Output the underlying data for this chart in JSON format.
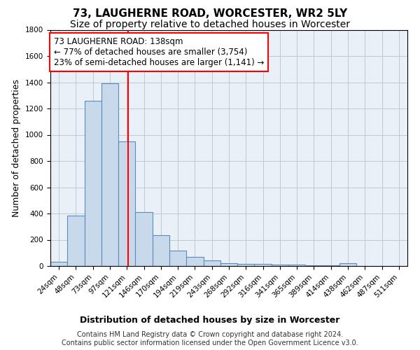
{
  "title": "73, LAUGHERNE ROAD, WORCESTER, WR2 5LY",
  "subtitle": "Size of property relative to detached houses in Worcester",
  "xlabel": "Distribution of detached houses by size in Worcester",
  "ylabel": "Number of detached properties",
  "bar_color": "#c9d9ec",
  "bar_edgecolor": "#5b8db8",
  "background_color": "#ffffff",
  "grid_color": "#c0c8d8",
  "ax_facecolor": "#eaf0f8",
  "vline_color": "red",
  "annotation_text": "73 LAUGHERNE ROAD: 138sqm\n← 77% of detached houses are smaller (3,754)\n23% of semi-detached houses are larger (1,141) →",
  "annotation_box_color": "white",
  "annotation_box_edgecolor": "red",
  "categories": [
    "24sqm",
    "48sqm",
    "73sqm",
    "97sqm",
    "121sqm",
    "146sqm",
    "170sqm",
    "194sqm",
    "219sqm",
    "243sqm",
    "268sqm",
    "292sqm",
    "316sqm",
    "341sqm",
    "365sqm",
    "389sqm",
    "414sqm",
    "438sqm",
    "462sqm",
    "487sqm",
    "511sqm"
  ],
  "bin_edges": [
    0,
    1,
    2,
    3,
    4,
    5,
    6,
    7,
    8,
    9,
    10,
    11,
    12,
    13,
    14,
    15,
    16,
    17,
    18,
    19,
    20
  ],
  "values": [
    30,
    385,
    1260,
    1390,
    950,
    410,
    235,
    115,
    70,
    45,
    20,
    15,
    15,
    10,
    10,
    5,
    5,
    20,
    0,
    0,
    0
  ],
  "ylim": [
    0,
    1800
  ],
  "yticks": [
    0,
    200,
    400,
    600,
    800,
    1000,
    1200,
    1400,
    1600,
    1800
  ],
  "vline_pos": 4.583,
  "footnote": "Contains HM Land Registry data © Crown copyright and database right 2024.\nContains public sector information licensed under the Open Government Licence v3.0.",
  "title_fontsize": 11,
  "subtitle_fontsize": 10,
  "xlabel_fontsize": 9,
  "ylabel_fontsize": 9,
  "tick_fontsize": 7.5,
  "annotation_fontsize": 8.5,
  "footnote_fontsize": 7
}
